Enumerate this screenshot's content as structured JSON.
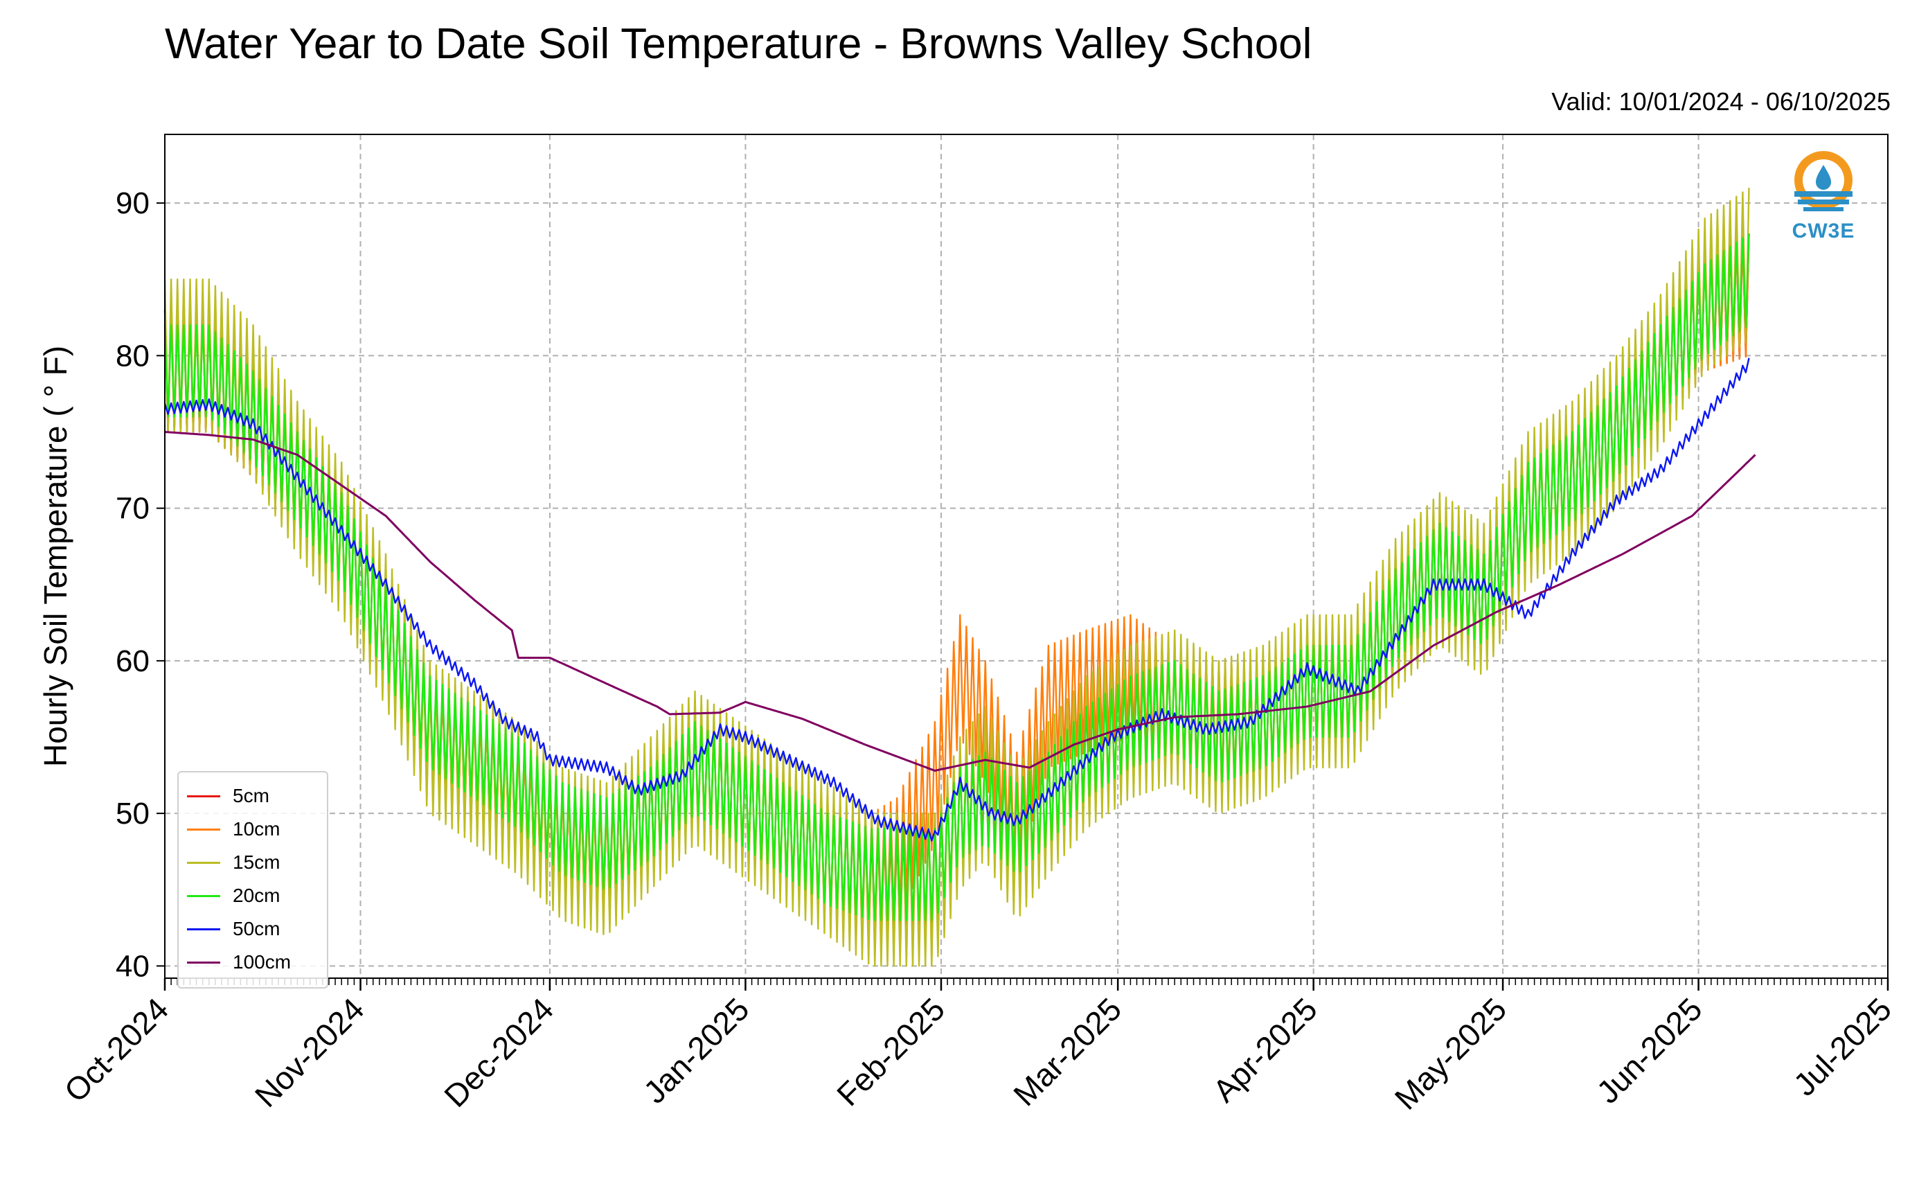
{
  "title": "Water Year to Date Soil Temperature - Browns Valley School",
  "valid_text": "Valid: 10/01/2024 - 06/10/2025",
  "logo_text": "CW3E",
  "chart_data": {
    "type": "line",
    "ylabel": "Hourly Soil Temperature ( ° F)",
    "ylim": [
      39.2,
      94.5
    ],
    "yticks": [
      40,
      50,
      60,
      70,
      80,
      90
    ],
    "xlim": [
      "2024-10-01",
      "2025-07-01"
    ],
    "xticks": [
      {
        "date": "2024-10-01",
        "label": "Oct-2024"
      },
      {
        "date": "2024-11-01",
        "label": "Nov-2024"
      },
      {
        "date": "2024-12-01",
        "label": "Dec-2024"
      },
      {
        "date": "2025-01-01",
        "label": "Jan-2025"
      },
      {
        "date": "2025-02-01",
        "label": "Feb-2025"
      },
      {
        "date": "2025-03-01",
        "label": "Mar-2025"
      },
      {
        "date": "2025-04-01",
        "label": "Apr-2025"
      },
      {
        "date": "2025-05-01",
        "label": "May-2025"
      },
      {
        "date": "2025-06-01",
        "label": "Jun-2025"
      },
      {
        "date": "2025-07-01",
        "label": "Jul-2025"
      }
    ],
    "grid": true,
    "legend_position": "lower-left",
    "series": [
      {
        "name": "5cm",
        "color": "#e8190f",
        "x": [
          "2024-10-01",
          "2024-10-08",
          "2024-10-15",
          "2024-10-22",
          "2024-10-29",
          "2024-11-05",
          "2024-11-12",
          "2024-11-19",
          "2024-11-26",
          "2024-12-03",
          "2024-12-10",
          "2024-12-17",
          "2024-12-24",
          "2024-12-31",
          "2025-01-07",
          "2025-01-14",
          "2025-01-21",
          "2025-01-25",
          "2025-01-31",
          "2025-02-04",
          "2025-02-08",
          "2025-02-13",
          "2025-02-18",
          "2025-02-24",
          "2025-03-03",
          "2025-03-10",
          "2025-03-17",
          "2025-03-24",
          "2025-03-31",
          "2025-04-07",
          "2025-04-14",
          "2025-04-21",
          "2025-04-28",
          "2025-05-05",
          "2025-05-12",
          "2025-05-19",
          "2025-05-26",
          "2025-06-02",
          "2025-06-09"
        ],
        "values": [
          79,
          79,
          76,
          72,
          68,
          62,
          55,
          53,
          51,
          48,
          47,
          50,
          53,
          51,
          49,
          47,
          45,
          45,
          46,
          50,
          52,
          49,
          51,
          54,
          56,
          57,
          55,
          56,
          58,
          58,
          63,
          66,
          64,
          70,
          72,
          75,
          79,
          83,
          84
        ]
      },
      {
        "name": "10cm",
        "color": "#ff7f0e",
        "x": [
          "2024-10-01",
          "2024-10-08",
          "2024-10-15",
          "2024-10-22",
          "2024-10-29",
          "2024-11-05",
          "2024-11-12",
          "2024-11-19",
          "2024-11-26",
          "2024-12-03",
          "2024-12-10",
          "2024-12-17",
          "2024-12-24",
          "2024-12-31",
          "2025-01-07",
          "2025-01-14",
          "2025-01-21",
          "2025-01-25",
          "2025-01-31",
          "2025-02-04",
          "2025-02-08",
          "2025-02-13",
          "2025-02-18",
          "2025-02-24",
          "2025-03-03",
          "2025-03-10",
          "2025-03-17",
          "2025-03-24",
          "2025-03-31",
          "2025-04-07",
          "2025-04-14",
          "2025-04-21",
          "2025-04-28",
          "2025-05-05",
          "2025-05-12",
          "2025-05-19",
          "2025-05-26",
          "2025-06-02",
          "2025-06-09"
        ],
        "values": [
          79,
          79,
          76,
          72,
          68,
          62,
          55,
          53,
          51,
          48,
          47,
          50,
          53,
          51,
          49,
          47,
          46,
          47,
          52,
          59,
          56,
          50,
          57,
          58,
          59,
          57,
          56,
          56,
          58,
          58,
          63,
          66,
          64,
          70,
          72,
          75,
          79,
          83,
          84
        ]
      },
      {
        "name": "15cm",
        "color": "#bcbd22",
        "x": [
          "2024-10-01",
          "2024-10-08",
          "2024-10-15",
          "2024-10-22",
          "2024-10-29",
          "2024-11-05",
          "2024-11-12",
          "2024-11-19",
          "2024-11-26",
          "2024-12-03",
          "2024-12-10",
          "2024-12-17",
          "2024-12-24",
          "2024-12-31",
          "2025-01-07",
          "2025-01-14",
          "2025-01-21",
          "2025-01-25",
          "2025-01-31",
          "2025-02-04",
          "2025-02-08",
          "2025-02-13",
          "2025-02-18",
          "2025-02-24",
          "2025-03-03",
          "2025-03-10",
          "2025-03-17",
          "2025-03-24",
          "2025-03-31",
          "2025-04-07",
          "2025-04-14",
          "2025-04-21",
          "2025-04-28",
          "2025-05-05",
          "2025-05-12",
          "2025-05-19",
          "2025-05-26",
          "2025-06-02",
          "2025-06-09"
        ],
        "values": [
          80,
          80,
          77,
          72,
          68,
          62,
          55,
          53,
          51,
          48,
          47,
          50,
          53,
          51,
          49,
          47,
          45,
          45,
          45,
          50,
          52,
          48,
          51,
          54,
          56,
          57,
          55,
          56,
          58,
          58,
          63,
          66,
          64,
          70,
          72,
          75,
          79,
          84,
          86
        ]
      },
      {
        "name": "20cm",
        "color": "#1fea12",
        "x": [
          "2024-10-01",
          "2024-10-08",
          "2024-10-15",
          "2024-10-22",
          "2024-10-29",
          "2024-11-05",
          "2024-11-12",
          "2024-11-19",
          "2024-11-26",
          "2024-12-03",
          "2024-12-10",
          "2024-12-17",
          "2024-12-24",
          "2024-12-31",
          "2025-01-07",
          "2025-01-14",
          "2025-01-21",
          "2025-01-25",
          "2025-01-31",
          "2025-02-04",
          "2025-02-08",
          "2025-02-13",
          "2025-02-18",
          "2025-02-24",
          "2025-03-03",
          "2025-03-10",
          "2025-03-17",
          "2025-03-24",
          "2025-03-31",
          "2025-04-07",
          "2025-04-14",
          "2025-04-21",
          "2025-04-28",
          "2025-05-05",
          "2025-05-12",
          "2025-05-19",
          "2025-05-26",
          "2025-06-02",
          "2025-06-09"
        ],
        "values": [
          79,
          79,
          76,
          72,
          68,
          62,
          56,
          54,
          52,
          49,
          48,
          50,
          53,
          51,
          49,
          47,
          46,
          46,
          46,
          50,
          51,
          49,
          51,
          54,
          56,
          57,
          55,
          56,
          58,
          58,
          63,
          66,
          64,
          70,
          72,
          75,
          79,
          83,
          85
        ]
      },
      {
        "name": "50cm",
        "color": "#0c17f0",
        "x": [
          "2024-10-01",
          "2024-10-08",
          "2024-10-15",
          "2024-10-22",
          "2024-10-29",
          "2024-11-05",
          "2024-11-12",
          "2024-11-19",
          "2024-11-24",
          "2024-11-29",
          "2024-12-01",
          "2024-12-10",
          "2024-12-15",
          "2024-12-22",
          "2024-12-28",
          "2025-01-01",
          "2025-01-08",
          "2025-01-15",
          "2025-01-22",
          "2025-01-31",
          "2025-02-04",
          "2025-02-09",
          "2025-02-13",
          "2025-02-20",
          "2025-02-28",
          "2025-03-08",
          "2025-03-15",
          "2025-03-22",
          "2025-03-31",
          "2025-04-08",
          "2025-04-15",
          "2025-04-20",
          "2025-04-28",
          "2025-05-05",
          "2025-05-12",
          "2025-05-19",
          "2025-05-26",
          "2025-06-02",
          "2025-06-09"
        ],
        "values": [
          76.5,
          76.8,
          75.5,
          72,
          68.5,
          65,
          61,
          58.5,
          56,
          55,
          53.5,
          53,
          51.5,
          52.5,
          55.5,
          55,
          53.5,
          52,
          49.5,
          48.5,
          52,
          50,
          49.5,
          52,
          55,
          56.5,
          55.5,
          56,
          59.5,
          58,
          62,
          65,
          65,
          63,
          67,
          70.5,
          72.5,
          76,
          79.5
        ]
      },
      {
        "name": "100cm",
        "color": "#800060",
        "x": [
          "2024-10-01",
          "2024-10-08",
          "2024-10-15",
          "2024-10-22",
          "2024-10-29",
          "2024-11-05",
          "2024-11-12",
          "2024-11-19",
          "2024-11-25",
          "2024-11-26",
          "2024-12-01",
          "2024-12-10",
          "2024-12-18",
          "2024-12-20",
          "2024-12-28",
          "2025-01-01",
          "2025-01-10",
          "2025-01-20",
          "2025-01-31",
          "2025-02-08",
          "2025-02-15",
          "2025-02-22",
          "2025-03-01",
          "2025-03-10",
          "2025-03-20",
          "2025-03-31",
          "2025-04-10",
          "2025-04-20",
          "2025-04-30",
          "2025-05-10",
          "2025-05-20",
          "2025-05-31",
          "2025-06-05",
          "2025-06-10"
        ],
        "values": [
          75,
          74.8,
          74.5,
          73.5,
          71.5,
          69.5,
          66.5,
          64,
          62,
          60.2,
          60.2,
          58.5,
          57,
          56.5,
          56.6,
          57.3,
          56.2,
          54.5,
          52.8,
          53.5,
          53,
          54.5,
          55.5,
          56.3,
          56.5,
          57,
          58,
          61,
          63.2,
          65,
          67,
          69.5,
          71.5,
          73.5
        ]
      }
    ]
  }
}
